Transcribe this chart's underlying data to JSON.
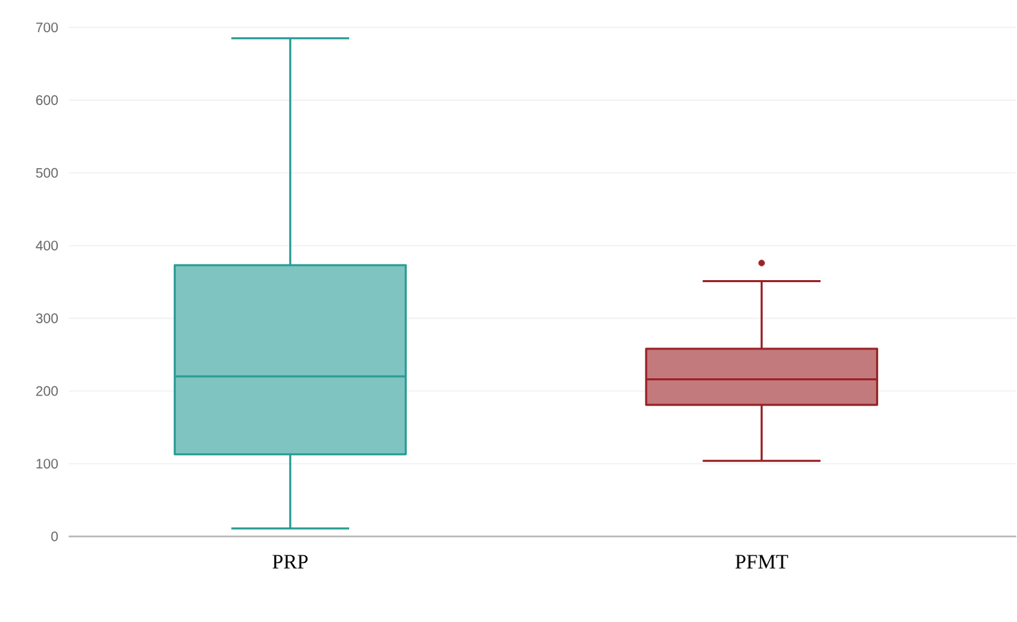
{
  "chart_data": {
    "type": "box",
    "categories": [
      "PRP",
      "PFMT"
    ],
    "boxes": [
      {
        "low": 11,
        "q1": 113,
        "median": 220,
        "q3": 373,
        "high": 685
      },
      {
        "low": 104,
        "q1": 181,
        "median": 216,
        "q3": 258,
        "high": 351,
        "outliers": [
          376
        ]
      }
    ],
    "colors": [
      "#2a9d96",
      "#9b2226"
    ],
    "ylim": [
      0,
      700
    ],
    "yticks": [
      0,
      100,
      200,
      300,
      400,
      500,
      600,
      700
    ],
    "grid": "y"
  }
}
